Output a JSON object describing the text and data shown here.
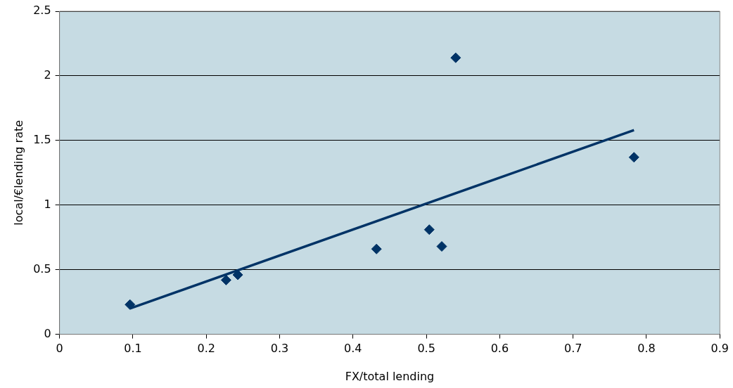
{
  "chart_data": {
    "type": "scatter",
    "xlabel": "FX/total lending",
    "ylabel": "local/€lending rate",
    "xlim": [
      0,
      0.9
    ],
    "xticks": [
      0,
      0.1,
      0.2,
      0.3,
      0.4,
      0.5,
      0.6,
      0.7,
      0.8,
      0.9
    ],
    "ylim": [
      0,
      2.5
    ],
    "yticks": [
      0,
      0.5,
      1,
      1.5,
      2,
      2.5
    ],
    "grid": "y",
    "legend": false,
    "marker": "diamond",
    "series": [
      {
        "type": "scatter",
        "color": "#003366",
        "x": [
          0.096,
          0.227,
          0.243,
          0.432,
          0.504,
          0.521,
          0.54,
          0.783
        ],
        "values": [
          0.23,
          0.42,
          0.46,
          0.66,
          0.81,
          0.68,
          2.14,
          1.37
        ]
      },
      {
        "type": "line",
        "color": "#003366",
        "marker": "none",
        "line_style": "solid",
        "x": [
          0.096,
          0.783
        ],
        "values": [
          0.2,
          1.58
        ]
      }
    ]
  }
}
